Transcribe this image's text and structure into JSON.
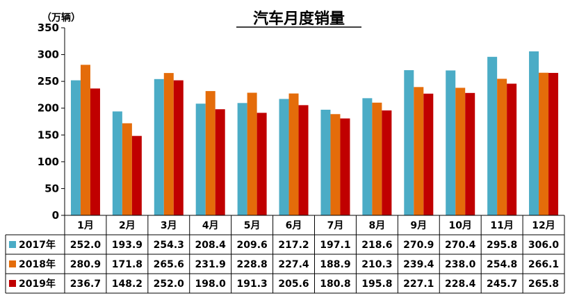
{
  "chart_data": {
    "type": "bar",
    "title": "汽车月度销量",
    "unit_label": "（万辆）",
    "categories": [
      "1月",
      "2月",
      "3月",
      "4月",
      "5月",
      "6月",
      "7月",
      "8月",
      "9月",
      "10月",
      "11月",
      "12月"
    ],
    "ylim": [
      0,
      350
    ],
    "yticks": [
      "0",
      "50",
      "100",
      "150",
      "200",
      "250",
      "300",
      "350"
    ],
    "grid": false,
    "legend": "data-table",
    "series": [
      {
        "name": "2017年",
        "color": "#4bacc6",
        "values": [
          252.0,
          193.9,
          254.3,
          208.4,
          209.6,
          217.2,
          197.1,
          218.6,
          270.9,
          270.4,
          295.8,
          306.0
        ],
        "labels": [
          "252.0",
          "193.9",
          "254.3",
          "208.4",
          "209.6",
          "217.2",
          "197.1",
          "218.6",
          "270.9",
          "270.4",
          "295.8",
          "306.0"
        ]
      },
      {
        "name": "2018年",
        "color": "#e46c0a",
        "values": [
          280.9,
          171.8,
          265.6,
          231.9,
          228.8,
          227.4,
          188.9,
          210.3,
          239.4,
          238.0,
          254.8,
          266.1
        ],
        "labels": [
          "280.9",
          "171.8",
          "265.6",
          "231.9",
          "228.8",
          "227.4",
          "188.9",
          "210.3",
          "239.4",
          "238.0",
          "254.8",
          "266.1"
        ]
      },
      {
        "name": "2019年",
        "color": "#c00000",
        "values": [
          236.7,
          148.2,
          252.0,
          198.0,
          191.3,
          205.6,
          180.8,
          195.8,
          227.1,
          228.4,
          245.7,
          265.8
        ],
        "labels": [
          "236.7",
          "148.2",
          "252.0",
          "198.0",
          "191.3",
          "205.6",
          "180.8",
          "195.8",
          "227.1",
          "228.4",
          "245.7",
          "265.8"
        ]
      }
    ]
  }
}
